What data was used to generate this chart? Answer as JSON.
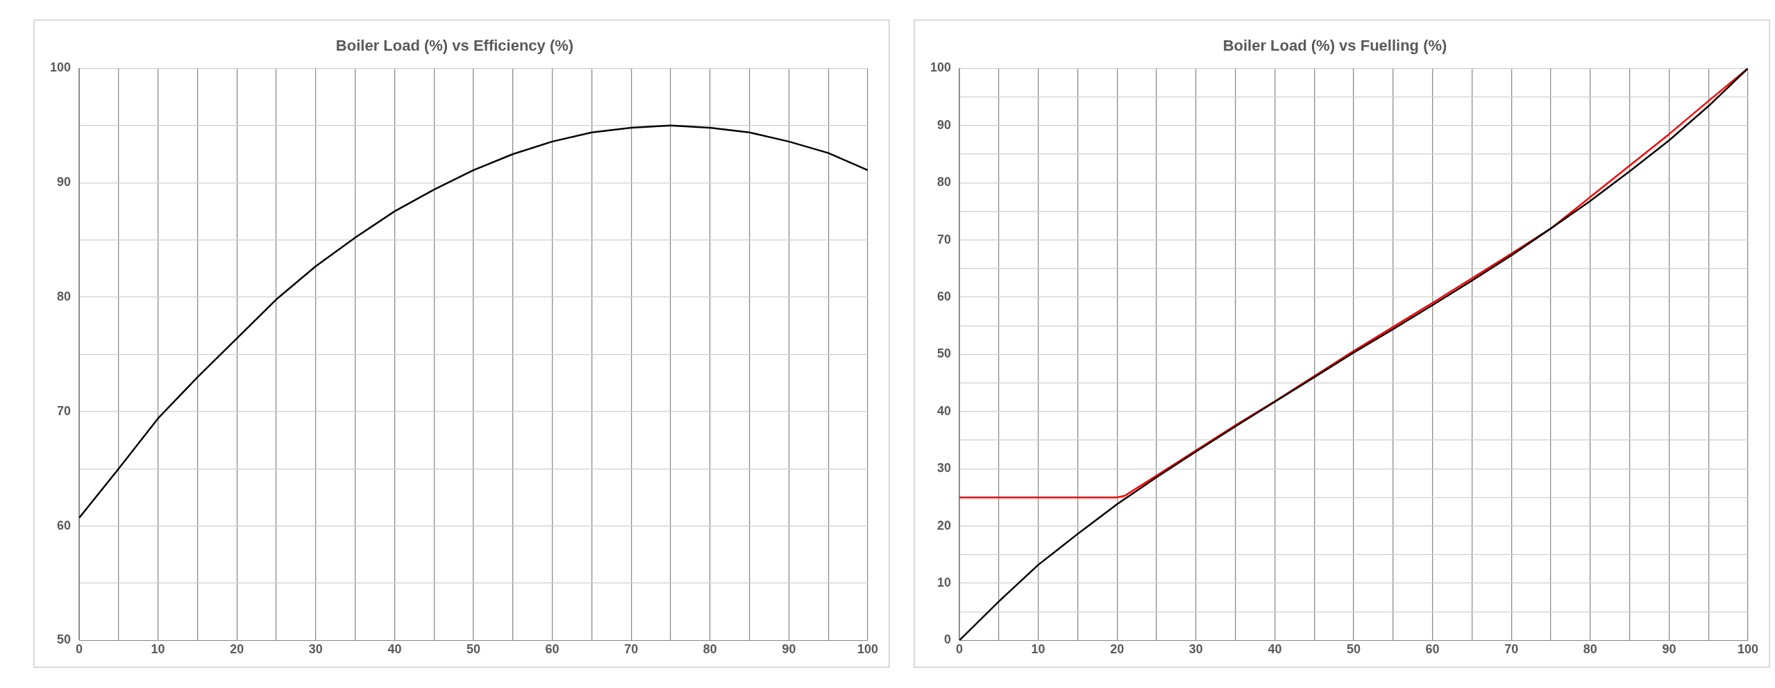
{
  "chart_data": [
    {
      "type": "line",
      "title": "Boiler Load (%) vs Efficiency (%)",
      "grid": true,
      "marker": "none",
      "xlim": [
        0,
        100
      ],
      "xticks": [
        0,
        {
          "value": 5,
          "label": null
        },
        10,
        {
          "value": 15,
          "label": null
        },
        20,
        {
          "value": 25,
          "label": null
        },
        30,
        {
          "value": 35,
          "label": null
        },
        40,
        {
          "value": 45,
          "label": null
        },
        50,
        {
          "value": 55,
          "label": null
        },
        60,
        {
          "value": 65,
          "label": null
        },
        70,
        {
          "value": 75,
          "label": null
        },
        80,
        {
          "value": 85,
          "label": null
        },
        90,
        {
          "value": 95,
          "label": null
        },
        100
      ],
      "ylim": [
        50,
        100
      ],
      "yticks": [
        50,
        {
          "value": 55,
          "label": null
        },
        60,
        {
          "value": 65,
          "label": null
        },
        70,
        {
          "value": 75,
          "label": null
        },
        80,
        {
          "value": 85,
          "label": null
        },
        90,
        {
          "value": 95,
          "label": null
        },
        100
      ],
      "series": [
        {
          "color": "#000000",
          "x": [
            0,
            5,
            10,
            15,
            20,
            25,
            30,
            35,
            40,
            45,
            50,
            55,
            60,
            65,
            70,
            75,
            80,
            85,
            90,
            95,
            100
          ],
          "values": [
            60.7,
            65.0,
            69.4,
            73.0,
            76.4,
            79.8,
            82.7,
            85.2,
            87.5,
            89.4,
            91.1,
            92.5,
            93.6,
            94.4,
            94.8,
            95.0,
            94.8,
            94.4,
            93.6,
            92.6,
            91.1
          ]
        }
      ]
    },
    {
      "type": "line",
      "title": "Boiler Load (%) vs Fuelling (%)",
      "grid": true,
      "marker": "none",
      "xlim": [
        0,
        100
      ],
      "xticks": [
        0,
        {
          "value": 5,
          "label": null
        },
        10,
        {
          "value": 15,
          "label": null
        },
        20,
        {
          "value": 25,
          "label": null
        },
        30,
        {
          "value": 35,
          "label": null
        },
        40,
        {
          "value": 45,
          "label": null
        },
        50,
        {
          "value": 55,
          "label": null
        },
        60,
        {
          "value": 65,
          "label": null
        },
        70,
        {
          "value": 75,
          "label": null
        },
        80,
        {
          "value": 85,
          "label": null
        },
        90,
        {
          "value": 95,
          "label": null
        },
        100
      ],
      "ylim": [
        0,
        100
      ],
      "yticks": [
        0,
        {
          "value": 5,
          "label": null
        },
        10,
        {
          "value": 15,
          "label": null
        },
        20,
        {
          "value": 25,
          "label": null
        },
        30,
        {
          "value": 35,
          "label": null
        },
        40,
        {
          "value": 45,
          "label": null
        },
        50,
        {
          "value": 55,
          "label": null
        },
        60,
        {
          "value": 65,
          "label": null
        },
        70,
        {
          "value": 75,
          "label": null
        },
        80,
        {
          "value": 85,
          "label": null
        },
        90,
        {
          "value": 95,
          "label": null
        },
        100
      ],
      "series": [
        {
          "color": "#000000",
          "x": [
            0,
            5,
            10,
            15,
            20,
            25,
            30,
            35,
            40,
            45,
            50,
            55,
            60,
            65,
            70,
            75,
            80,
            85,
            90,
            95,
            100
          ],
          "values": [
            0,
            6.8,
            13.2,
            18.6,
            23.8,
            28.5,
            33.0,
            37.4,
            41.7,
            46.0,
            50.3,
            54.4,
            58.6,
            62.9,
            67.3,
            72.0,
            76.8,
            82.0,
            87.4,
            93.4,
            100
          ]
        },
        {
          "color": "#ff0000",
          "x": [
            0,
            20,
            21,
            25,
            30,
            35,
            40,
            45,
            50,
            55,
            60,
            65,
            70,
            75,
            80,
            85,
            90,
            95,
            100
          ],
          "values": [
            25,
            25,
            25.3,
            28.8,
            33.2,
            37.6,
            41.8,
            46.2,
            50.6,
            54.8,
            59.0,
            63.3,
            67.6,
            72.0,
            77.5,
            83.0,
            88.5,
            94.3,
            100
          ]
        }
      ]
    }
  ]
}
